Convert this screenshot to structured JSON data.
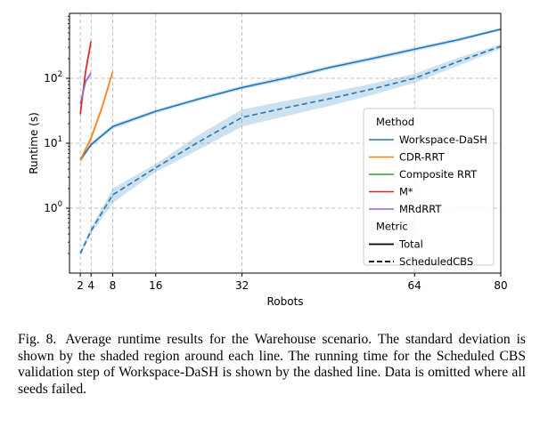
{
  "chart_data": {
    "type": "line",
    "xlabel": "Robots",
    "ylabel": "Runtime (s)",
    "xscale": "linear",
    "yscale": "log",
    "xlim": [
      0,
      80
    ],
    "ylim": [
      0.1,
      1000
    ],
    "xticks": [
      2,
      4,
      8,
      16,
      32,
      64,
      80
    ],
    "yticks": [
      {
        "value": 1,
        "base": "10",
        "exp": "0"
      },
      {
        "value": 10,
        "base": "10",
        "exp": "1"
      },
      {
        "value": 100,
        "base": "10",
        "exp": "2"
      }
    ],
    "grid": true,
    "legend": {
      "placement": "right",
      "method_title": "Method",
      "metric_title": "Metric",
      "metrics": [
        {
          "name": "Total",
          "dash": "solid"
        },
        {
          "name": "ScheduledCBS",
          "dash": "dashed"
        }
      ]
    },
    "series": [
      {
        "name": "Workspace-DaSH",
        "metric": "Total",
        "color": "#1f77b4",
        "dash": "solid",
        "x": [
          2,
          4,
          8,
          16,
          24,
          32,
          40,
          48,
          56,
          64,
          72,
          80
        ],
        "y": [
          5.5,
          9.5,
          18,
          31,
          48,
          72,
          100,
          145,
          200,
          280,
          390,
          570
        ],
        "lo": [
          5.0,
          8.8,
          16.5,
          29,
          45,
          67,
          93,
          135,
          185,
          260,
          365,
          540
        ],
        "hi": [
          6.0,
          10.3,
          19.5,
          33,
          51,
          77,
          108,
          155,
          215,
          300,
          415,
          600
        ]
      },
      {
        "name": "Workspace-DaSH",
        "metric": "ScheduledCBS",
        "color": "#1f77b4",
        "dash": "dashed",
        "x": [
          2,
          4,
          8,
          16,
          24,
          32,
          40,
          48,
          56,
          64,
          72,
          80
        ],
        "y": [
          0.2,
          0.45,
          1.6,
          4.2,
          10.5,
          25,
          35,
          48,
          68,
          100,
          180,
          310
        ],
        "lo": [
          0.18,
          0.4,
          1.2,
          3.6,
          8.0,
          18,
          26,
          37,
          55,
          85,
          155,
          285
        ],
        "hi": [
          0.22,
          0.5,
          2.0,
          4.8,
          13.5,
          33,
          45,
          60,
          82,
          118,
          205,
          335
        ]
      },
      {
        "name": "CDR-RRT",
        "metric": "Total",
        "color": "#ff7f0e",
        "dash": "solid",
        "x": [
          2,
          4,
          6,
          8
        ],
        "y": [
          5.5,
          12,
          35,
          125
        ],
        "lo": [
          5.0,
          10.5,
          30,
          110
        ],
        "hi": [
          6.0,
          13.5,
          40,
          140
        ]
      },
      {
        "name": "Composite RRT",
        "metric": "Total",
        "color": "#2ca02c",
        "dash": "solid",
        "x": [],
        "y": [],
        "lo": [],
        "hi": []
      },
      {
        "name": "M*",
        "metric": "Total",
        "color": "#d62728",
        "dash": "solid",
        "x": [
          2,
          3,
          4
        ],
        "y": [
          28,
          130,
          370
        ],
        "lo": [
          20,
          100,
          300
        ],
        "hi": [
          36,
          160,
          450
        ]
      },
      {
        "name": "MRdRRT",
        "metric": "Total",
        "color": "#9467bd",
        "dash": "solid",
        "x": [
          2,
          3,
          4
        ],
        "y": [
          40,
          90,
          120
        ],
        "lo": [
          35,
          80,
          110
        ],
        "hi": [
          45,
          100,
          130
        ]
      }
    ]
  },
  "caption": {
    "label": "Fig. 8.",
    "text": "Average runtime results for the Warehouse scenario. The standard deviation is shown by the shaded region around each line. The running time for the Scheduled CBS validation step of Workspace-DaSH is shown by the dashed line. Data is omitted where all seeds failed."
  }
}
